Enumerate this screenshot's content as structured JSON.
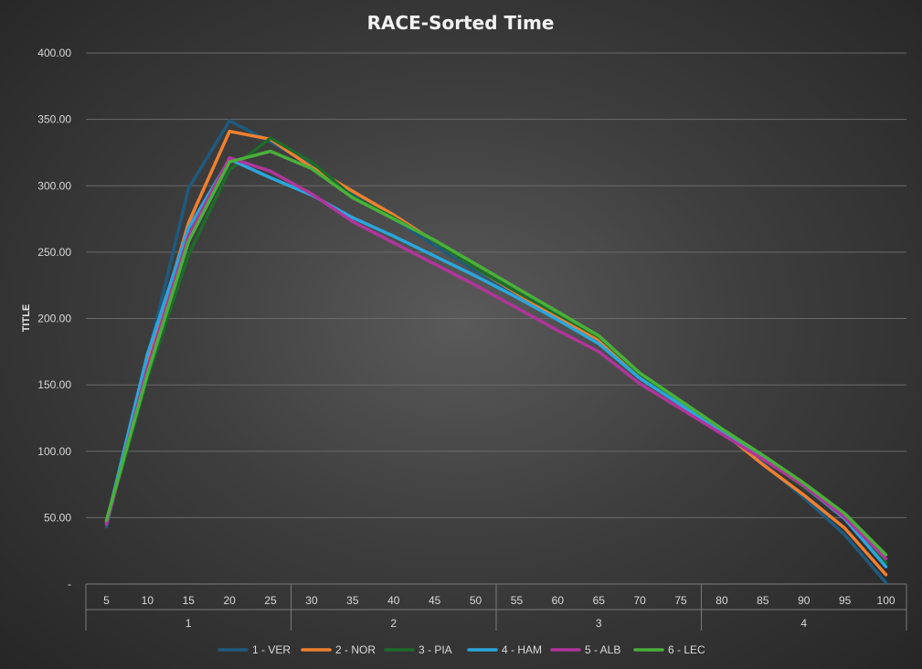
{
  "chart_data": {
    "type": "line",
    "title": "RACE-Sorted Time",
    "xlabel": "",
    "ylabel": "TITLE",
    "ylim": [
      0,
      400
    ],
    "ytick_labels": [
      "-",
      "50.00",
      "100.00",
      "150.00",
      "200.00",
      "250.00",
      "300.00",
      "350.00",
      "400.00"
    ],
    "x": [
      5,
      10,
      15,
      20,
      25,
      30,
      35,
      40,
      45,
      50,
      55,
      60,
      65,
      70,
      75,
      80,
      85,
      90,
      95,
      100
    ],
    "x_groups": [
      {
        "label": "1",
        "from": 5,
        "to": 25
      },
      {
        "label": "2",
        "from": 30,
        "to": 50
      },
      {
        "label": "3",
        "from": 55,
        "to": 75
      },
      {
        "label": "4",
        "from": 80,
        "to": 100
      }
    ],
    "grid": true,
    "legend_position": "bottom",
    "series": [
      {
        "name": "1 - VER",
        "color": "#1f5a7e",
        "values": [
          43,
          170,
          298,
          349,
          333,
          316,
          293,
          275,
          255,
          236,
          218,
          200,
          182,
          157,
          135,
          114,
          91,
          65,
          37,
          1
        ]
      },
      {
        "name": "2 - NOR",
        "color": "#f08030",
        "values": [
          47,
          165,
          272,
          341,
          335,
          314,
          296,
          278,
          258,
          238,
          219,
          201,
          184,
          157,
          135,
          115,
          90,
          67,
          42,
          7
        ]
      },
      {
        "name": "3 - PIA",
        "color": "#1e6b2a",
        "values": [
          46,
          155,
          248,
          312,
          336,
          318,
          292,
          276,
          258,
          238,
          220,
          203,
          186,
          158,
          137,
          116,
          95,
          73,
          50,
          16
        ]
      },
      {
        "name": "4 - HAM",
        "color": "#2aa6dc",
        "values": [
          46,
          173,
          268,
          320,
          306,
          293,
          276,
          262,
          247,
          232,
          216,
          199,
          181,
          155,
          135,
          114,
          95,
          74,
          49,
          13
        ]
      },
      {
        "name": "5 - ALB",
        "color": "#b0359a",
        "values": [
          45,
          163,
          262,
          321,
          311,
          294,
          273,
          257,
          241,
          225,
          208,
          191,
          175,
          151,
          132,
          113,
          94,
          74,
          50,
          19
        ]
      },
      {
        "name": "6 - LEC",
        "color": "#4ab03a",
        "values": [
          48,
          158,
          258,
          318,
          326,
          313,
          291,
          275,
          259,
          241,
          223,
          205,
          187,
          159,
          138,
          117,
          97,
          76,
          53,
          22
        ]
      }
    ]
  }
}
